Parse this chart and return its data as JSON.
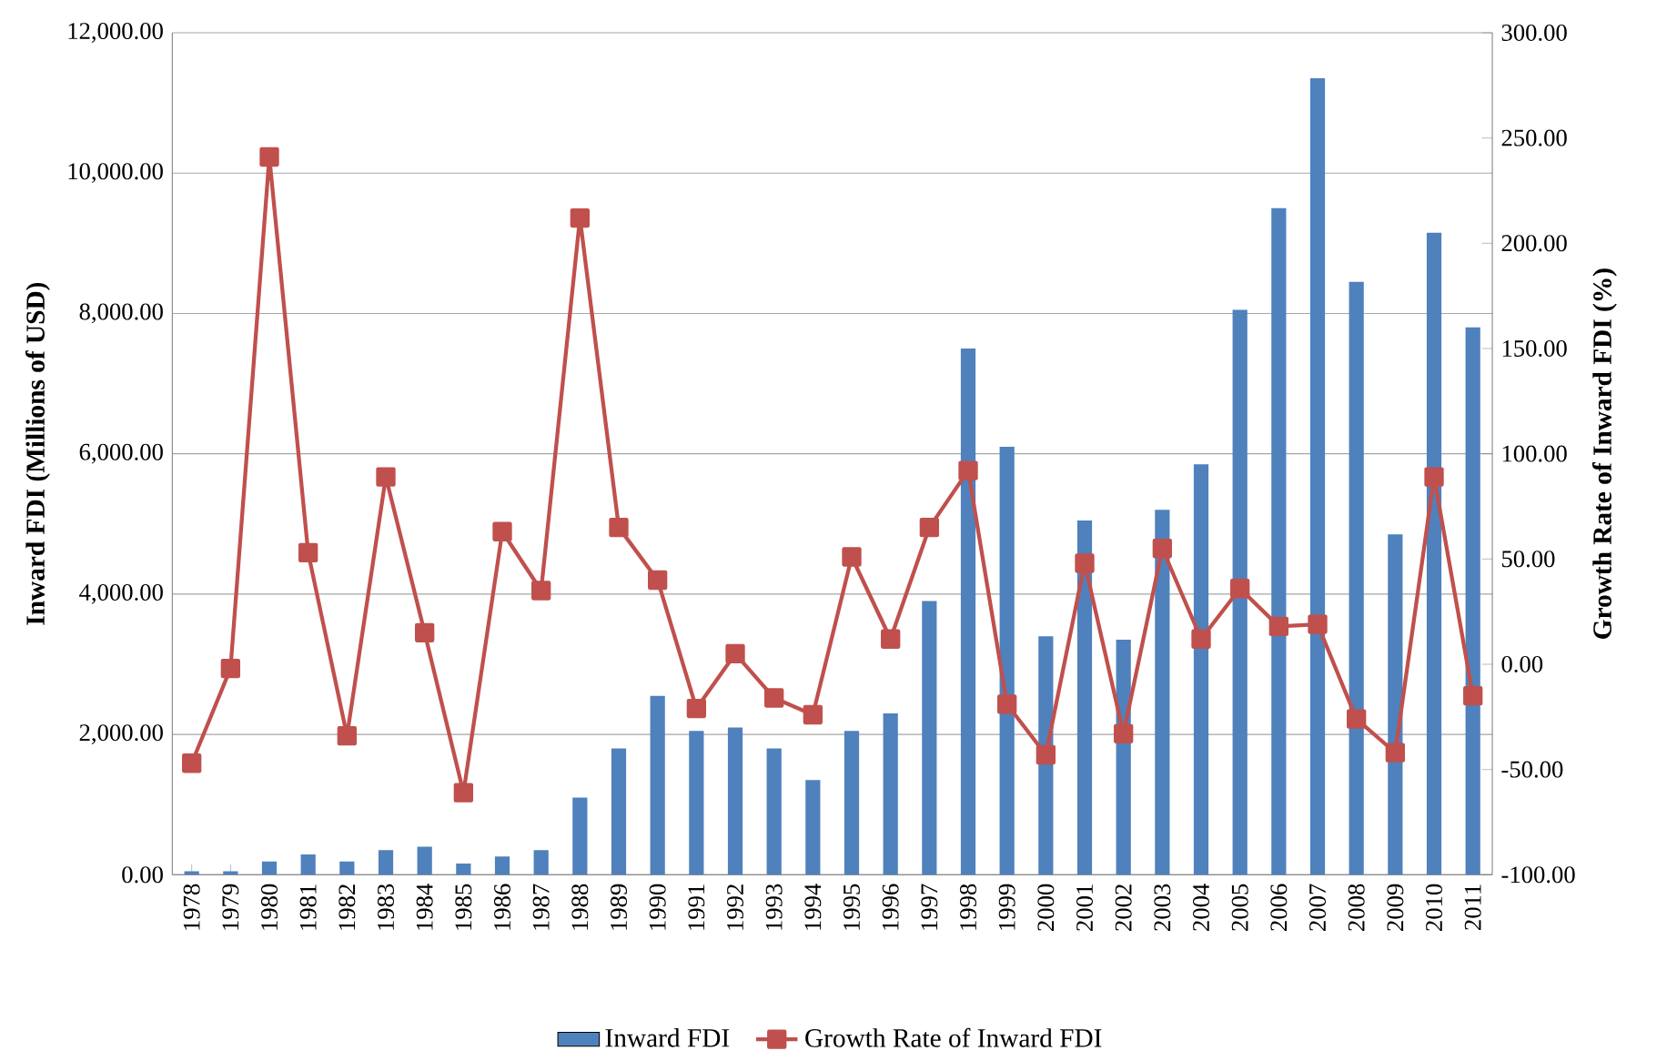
{
  "chart_data": {
    "type": "bar",
    "ylabel": "Inward FDI (Millions of USD)",
    "y2label": "Growth Rate of Inward FDI (%)",
    "categories": [
      "1978",
      "1979",
      "1980",
      "1981",
      "1982",
      "1983",
      "1984",
      "1985",
      "1986",
      "1987",
      "1988",
      "1989",
      "1990",
      "1991",
      "1992",
      "1993",
      "1994",
      "1995",
      "1996",
      "1997",
      "1998",
      "1999",
      "2000",
      "2001",
      "2002",
      "2003",
      "2004",
      "2005",
      "2006",
      "2007",
      "2008",
      "2009",
      "2010",
      "2011"
    ],
    "series": [
      {
        "name": "Inward FDI",
        "color": "#4f81bd",
        "values": [
          50,
          50,
          190,
          290,
          190,
          350,
          400,
          160,
          260,
          350,
          1100,
          1800,
          2550,
          2050,
          2100,
          1800,
          1350,
          2050,
          2300,
          3900,
          7500,
          6100,
          3400,
          5050,
          3350,
          5200,
          5850,
          8050,
          9500,
          11350,
          8450,
          4850,
          9150,
          7800
        ]
      },
      {
        "name": "Growth Rate of Inward FDI",
        "type": "line",
        "axis": "y2",
        "color": "#c0504d",
        "marker": "square",
        "values": [
          -47,
          -2,
          241,
          53,
          -34,
          89,
          15,
          -61,
          63,
          35,
          212,
          65,
          40,
          -21,
          5,
          -16,
          -24,
          51,
          12,
          65,
          92,
          -19,
          -43,
          48,
          -33,
          55,
          12,
          36,
          18,
          19,
          -26,
          -42,
          89,
          -15
        ]
      }
    ],
    "ylim": [
      0,
      12000
    ],
    "yticks": [
      {
        "value": 0,
        "label": "0.00"
      },
      {
        "value": 2000,
        "label": "2,000.00"
      },
      {
        "value": 4000,
        "label": "4,000.00"
      },
      {
        "value": 6000,
        "label": "6,000.00"
      },
      {
        "value": 8000,
        "label": "8,000.00"
      },
      {
        "value": 10000,
        "label": "10,000.00"
      },
      {
        "value": 12000,
        "label": "12,000.00"
      }
    ],
    "y2lim": [
      -100,
      300
    ],
    "y2ticks": [
      {
        "value": -100,
        "label": "-100.00"
      },
      {
        "value": -50,
        "label": "-50.00"
      },
      {
        "value": 0,
        "label": "0.00"
      },
      {
        "value": 50,
        "label": "50.00"
      },
      {
        "value": 100,
        "label": "100.00"
      },
      {
        "value": 150,
        "label": "150.00"
      },
      {
        "value": 200,
        "label": "200.00"
      },
      {
        "value": 250,
        "label": "250.00"
      },
      {
        "value": 300,
        "label": "300.00"
      }
    ],
    "grid": "y",
    "legend": "bottom"
  }
}
